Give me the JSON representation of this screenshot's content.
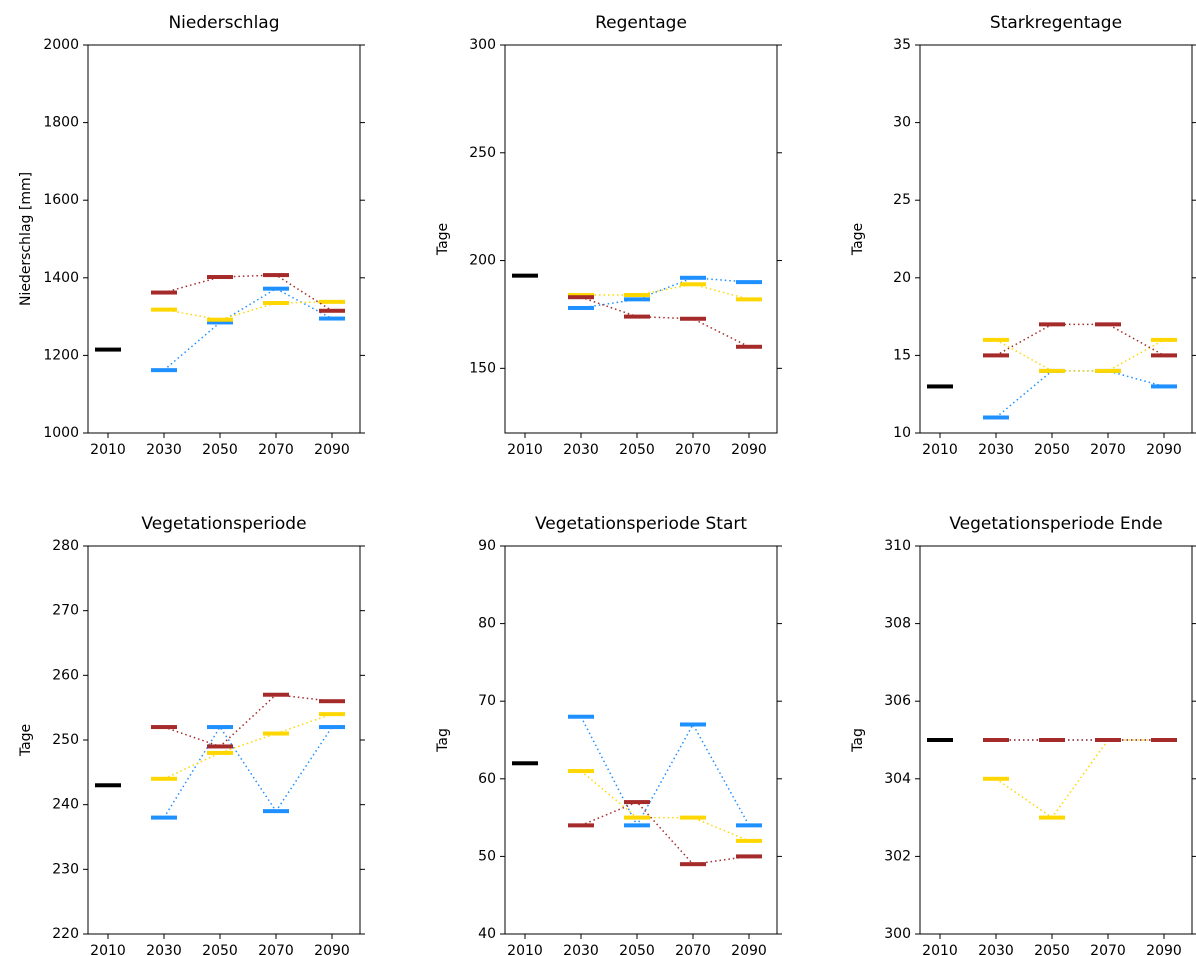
{
  "chart_data": [
    {
      "type": "dash",
      "title": "Niederschlag",
      "y_label": "Niederschlag [mm]",
      "categories": [
        "2010",
        "2030",
        "2050",
        "2070",
        "2090"
      ],
      "ylim": [
        1000,
        2000
      ],
      "yticks": [
        1000,
        1200,
        1400,
        1600,
        1800,
        2000
      ],
      "series": [
        {
          "color": "#000000",
          "values": [
            1215,
            null,
            null,
            null,
            null
          ]
        },
        {
          "color": "#1e90ff",
          "values": [
            null,
            1162,
            1285,
            1372,
            1295
          ]
        },
        {
          "color": "#ffd700",
          "values": [
            null,
            1318,
            1292,
            1335,
            1338
          ]
        },
        {
          "color": "#a52a2a",
          "values": [
            null,
            1362,
            1402,
            1407,
            1315
          ]
        }
      ]
    },
    {
      "type": "dash",
      "title": "Regentage",
      "y_label": "Tage",
      "categories": [
        "2010",
        "2030",
        "2050",
        "2070",
        "2090"
      ],
      "ylim": [
        120,
        300
      ],
      "yticks": [
        150,
        200,
        250,
        300
      ],
      "series": [
        {
          "color": "#000000",
          "values": [
            193,
            null,
            null,
            null,
            null
          ]
        },
        {
          "color": "#1e90ff",
          "values": [
            null,
            178,
            182,
            192,
            190
          ]
        },
        {
          "color": "#ffd700",
          "values": [
            null,
            184,
            184,
            189,
            182
          ]
        },
        {
          "color": "#a52a2a",
          "values": [
            null,
            183,
            174,
            173,
            160
          ]
        }
      ]
    },
    {
      "type": "dash",
      "title": "Starkregentage",
      "y_label": "Tage",
      "categories": [
        "2010",
        "2030",
        "2050",
        "2070",
        "2090"
      ],
      "ylim": [
        10,
        35
      ],
      "yticks": [
        10,
        15,
        20,
        25,
        30,
        35
      ],
      "series": [
        {
          "color": "#000000",
          "values": [
            13,
            null,
            null,
            null,
            null
          ]
        },
        {
          "color": "#1e90ff",
          "values": [
            null,
            11,
            14,
            14,
            13
          ]
        },
        {
          "color": "#ffd700",
          "values": [
            null,
            16,
            14,
            14,
            16
          ]
        },
        {
          "color": "#a52a2a",
          "values": [
            null,
            15,
            17,
            17,
            15
          ]
        }
      ]
    },
    {
      "type": "dash",
      "title": "Vegetationsperiode",
      "y_label": "Tage",
      "categories": [
        "2010",
        "2030",
        "2050",
        "2070",
        "2090"
      ],
      "ylim": [
        220,
        280
      ],
      "yticks": [
        220,
        230,
        240,
        250,
        260,
        270,
        280
      ],
      "series": [
        {
          "color": "#000000",
          "values": [
            243,
            null,
            null,
            null,
            null
          ]
        },
        {
          "color": "#1e90ff",
          "values": [
            null,
            238,
            252,
            239,
            252
          ]
        },
        {
          "color": "#ffd700",
          "values": [
            null,
            244,
            248,
            251,
            254
          ]
        },
        {
          "color": "#a52a2a",
          "values": [
            null,
            252,
            249,
            257,
            256
          ]
        }
      ]
    },
    {
      "type": "dash",
      "title": "Vegetationsperiode Start",
      "y_label": "Tag",
      "categories": [
        "2010",
        "2030",
        "2050",
        "2070",
        "2090"
      ],
      "ylim": [
        40,
        90
      ],
      "yticks": [
        40,
        50,
        60,
        70,
        80,
        90
      ],
      "series": [
        {
          "color": "#000000",
          "values": [
            62,
            null,
            null,
            null,
            null
          ]
        },
        {
          "color": "#1e90ff",
          "values": [
            null,
            68,
            54,
            67,
            54
          ]
        },
        {
          "color": "#ffd700",
          "values": [
            null,
            61,
            55,
            55,
            52
          ]
        },
        {
          "color": "#a52a2a",
          "values": [
            null,
            54,
            57,
            49,
            50
          ]
        }
      ]
    },
    {
      "type": "dash",
      "title": "Vegetationsperiode Ende",
      "y_label": "Tag",
      "categories": [
        "2010",
        "2030",
        "2050",
        "2070",
        "2090"
      ],
      "ylim": [
        300,
        310
      ],
      "yticks": [
        300,
        302,
        304,
        306,
        308,
        310
      ],
      "series": [
        {
          "color": "#000000",
          "values": [
            305,
            null,
            null,
            null,
            null
          ]
        },
        {
          "color": "#1e90ff",
          "values": [
            null,
            305,
            305,
            305,
            305
          ]
        },
        {
          "color": "#ffd700",
          "values": [
            null,
            304,
            303,
            305,
            305
          ]
        },
        {
          "color": "#a52a2a",
          "values": [
            null,
            305,
            305,
            305,
            305
          ]
        }
      ]
    }
  ]
}
